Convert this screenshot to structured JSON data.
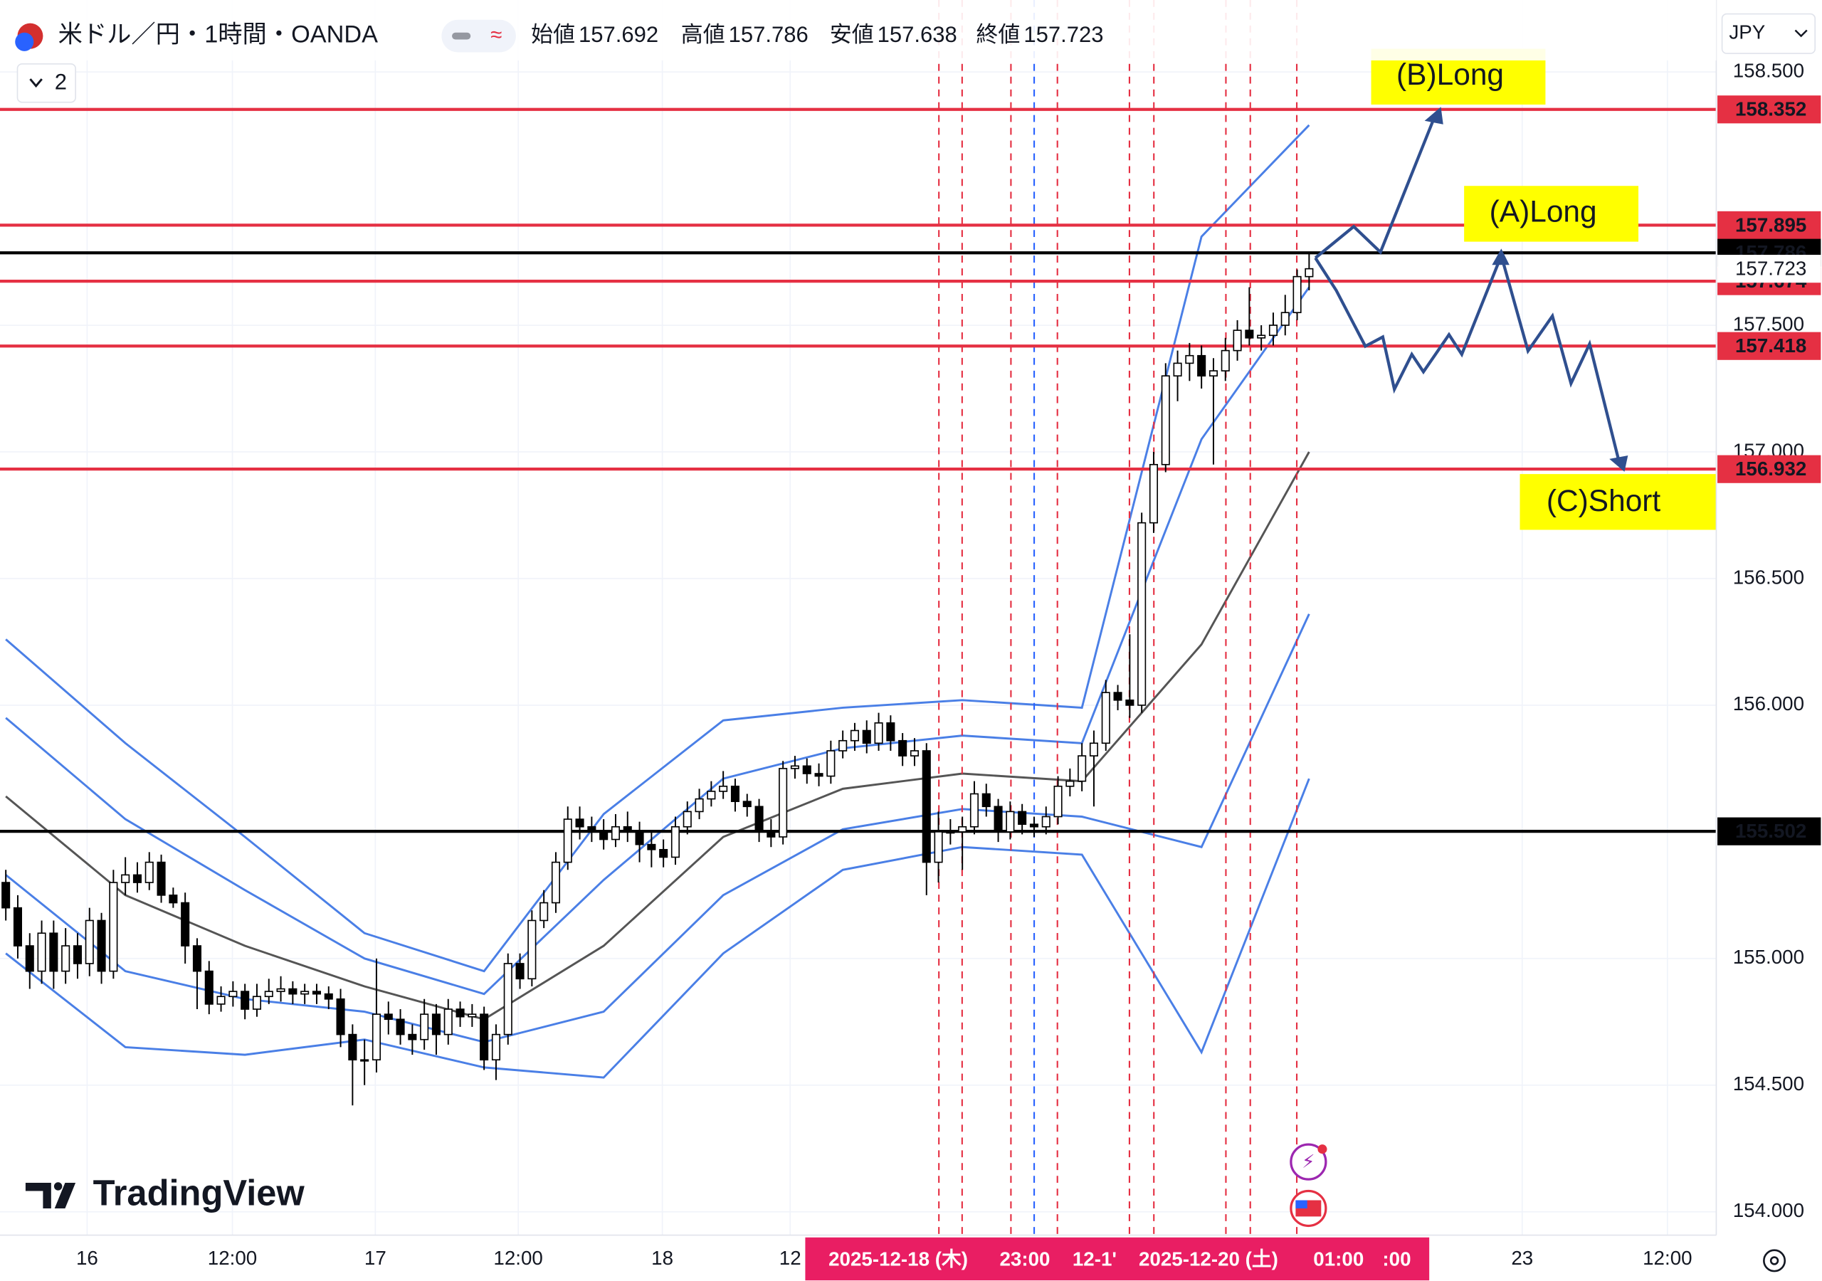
{
  "header": {
    "symbol": "米ドル／円・1時間・OANDA",
    "open_label": "始値",
    "open": 157.692,
    "high_label": "高値",
    "high": 157.786,
    "low_label": "安値",
    "low": 157.638,
    "close_label": "終値",
    "close": 157.723,
    "indicator_count": "2",
    "currency": "JPY"
  },
  "branding": "TradingView",
  "chart_data": {
    "type": "candlestick",
    "ylim": [
      153.908,
      158.784
    ],
    "yticks": [
      {
        "value": 154,
        "label": "154.000"
      },
      {
        "value": 154.5,
        "label": "154.500"
      },
      {
        "value": 155,
        "label": "155.000"
      },
      {
        "value": 156,
        "label": "156.000"
      },
      {
        "value": 156.5,
        "label": "156.500"
      },
      {
        "value": 157,
        "label": "157.000"
      },
      {
        "value": 157.5,
        "label": "157.500"
      },
      {
        "value": 158.5,
        "label": "158.500"
      }
    ],
    "xlabels": [
      "16",
      "12:00",
      "17",
      "12:00",
      "18",
      "12",
      "23",
      "12:00"
    ],
    "time_marker_labels": [
      "2025-12-18 (木)",
      "23:00",
      "12-1'",
      "2025-12-20 (土)",
      "01:00",
      ":00"
    ],
    "grid": true,
    "up_color": "#ffffff",
    "down_color": "#000000",
    "wick_color": "#000000",
    "open": [
      155.3,
      155.2,
      155.05,
      154.95,
      155.1,
      154.95,
      155.05,
      154.98,
      155.15,
      154.95,
      155.3,
      155.33,
      155.3,
      155.38,
      155.25,
      155.22,
      155.05,
      154.95,
      154.82,
      154.85,
      154.87,
      154.8,
      154.85,
      154.87,
      154.88,
      154.86,
      154.87,
      154.86,
      154.84,
      154.7,
      154.6,
      154.6,
      154.78,
      154.76,
      154.7,
      154.68,
      154.78,
      154.7,
      154.8,
      154.77,
      154.78,
      154.6,
      154.7,
      154.98,
      154.92,
      155.15,
      155.22,
      155.38,
      155.55,
      155.52,
      155.5,
      155.47,
      155.52,
      155.5,
      155.45,
      155.43,
      155.4,
      155.52,
      155.58,
      155.63,
      155.66,
      155.68,
      155.62,
      155.6,
      155.5,
      155.48,
      155.75,
      155.76,
      155.73,
      155.72,
      155.82,
      155.86,
      155.9,
      155.85,
      155.93,
      155.86,
      155.8,
      155.82,
      155.38,
      155.5,
      155.5,
      155.52,
      155.65,
      155.6,
      155.5,
      155.58,
      155.53,
      155.52,
      155.56,
      155.68,
      155.7,
      155.8,
      155.85,
      156.05,
      156.02,
      156.0,
      156.72,
      156.95,
      157.3,
      157.35,
      157.38,
      157.3,
      157.32,
      157.4,
      157.48,
      157.45,
      157.46,
      157.5,
      157.55,
      157.692
    ],
    "high": [
      155.35,
      155.25,
      155.1,
      155.15,
      155.15,
      155.12,
      155.1,
      155.2,
      155.18,
      155.35,
      155.4,
      155.38,
      155.42,
      155.41,
      155.28,
      155.26,
      155.08,
      154.99,
      154.89,
      154.91,
      154.9,
      154.9,
      154.92,
      154.93,
      154.91,
      154.9,
      154.9,
      154.89,
      154.88,
      154.74,
      154.68,
      155.0,
      154.83,
      154.8,
      154.74,
      154.84,
      154.82,
      154.84,
      154.83,
      154.82,
      154.81,
      154.74,
      155.02,
      155.02,
      155.19,
      155.27,
      155.42,
      155.6,
      155.6,
      155.56,
      155.55,
      155.57,
      155.58,
      155.54,
      155.5,
      155.47,
      155.56,
      155.62,
      155.67,
      155.7,
      155.74,
      155.71,
      155.65,
      155.63,
      155.55,
      155.78,
      155.8,
      155.79,
      155.77,
      155.86,
      155.9,
      155.93,
      155.94,
      155.97,
      155.96,
      155.89,
      155.87,
      155.85,
      155.58,
      155.55,
      155.56,
      155.7,
      155.69,
      155.63,
      155.62,
      155.61,
      155.56,
      155.6,
      155.72,
      155.75,
      155.85,
      155.9,
      156.1,
      156.08,
      156.28,
      156.76,
      157.0,
      157.35,
      157.4,
      157.43,
      157.42,
      157.37,
      157.45,
      157.52,
      157.65,
      157.5,
      157.55,
      157.62,
      157.72,
      157.786
    ],
    "low": [
      155.15,
      155.0,
      154.88,
      154.9,
      154.88,
      154.9,
      154.92,
      154.93,
      154.9,
      154.92,
      155.25,
      155.26,
      155.27,
      155.22,
      155.2,
      154.98,
      154.8,
      154.78,
      154.79,
      154.81,
      154.76,
      154.77,
      154.82,
      154.83,
      154.82,
      154.82,
      154.82,
      154.8,
      154.65,
      154.42,
      154.5,
      154.55,
      154.7,
      154.66,
      154.62,
      154.64,
      154.62,
      154.66,
      154.73,
      154.73,
      154.56,
      154.52,
      154.66,
      154.88,
      154.89,
      155.12,
      155.18,
      155.35,
      155.47,
      155.46,
      155.43,
      155.44,
      155.46,
      155.38,
      155.36,
      155.36,
      155.37,
      155.49,
      155.55,
      155.6,
      155.63,
      155.58,
      155.56,
      155.46,
      155.44,
      155.45,
      155.71,
      155.69,
      155.68,
      155.69,
      155.79,
      155.82,
      155.81,
      155.82,
      155.82,
      155.76,
      155.76,
      155.25,
      155.3,
      155.45,
      155.35,
      155.49,
      155.56,
      155.46,
      155.47,
      155.49,
      155.48,
      155.49,
      155.53,
      155.64,
      155.66,
      155.6,
      155.82,
      155.98,
      155.95,
      155.97,
      156.68,
      156.92,
      157.2,
      157.28,
      157.25,
      156.95,
      157.28,
      157.36,
      157.42,
      157.4,
      157.42,
      157.46,
      157.52,
      157.638
    ],
    "close": [
      155.2,
      155.05,
      154.95,
      155.1,
      154.95,
      155.05,
      154.98,
      155.15,
      154.95,
      155.3,
      155.33,
      155.3,
      155.38,
      155.25,
      155.22,
      155.05,
      154.95,
      154.82,
      154.85,
      154.87,
      154.8,
      154.85,
      154.87,
      154.88,
      154.86,
      154.87,
      154.86,
      154.84,
      154.7,
      154.6,
      154.6,
      154.78,
      154.76,
      154.7,
      154.68,
      154.78,
      154.7,
      154.8,
      154.77,
      154.78,
      154.6,
      154.7,
      154.98,
      154.92,
      155.15,
      155.22,
      155.38,
      155.55,
      155.52,
      155.5,
      155.47,
      155.52,
      155.5,
      155.45,
      155.43,
      155.4,
      155.52,
      155.58,
      155.63,
      155.66,
      155.68,
      155.62,
      155.6,
      155.5,
      155.48,
      155.75,
      155.76,
      155.73,
      155.72,
      155.82,
      155.86,
      155.9,
      155.85,
      155.93,
      155.86,
      155.8,
      155.82,
      155.38,
      155.5,
      155.5,
      155.52,
      155.65,
      155.6,
      155.5,
      155.58,
      155.53,
      155.52,
      155.56,
      155.68,
      155.7,
      155.8,
      155.85,
      156.05,
      156.02,
      156.0,
      156.72,
      156.95,
      157.3,
      157.35,
      157.38,
      157.3,
      157.32,
      157.4,
      157.48,
      157.45,
      157.46,
      157.5,
      157.55,
      157.692,
      157.723
    ],
    "band_x": [
      0,
      10,
      20,
      30,
      40,
      50,
      60,
      70,
      80,
      90,
      100,
      109
    ],
    "bands": [
      {
        "color": "#4a7fe6",
        "values": [
          156.26,
          155.85,
          155.48,
          155.1,
          154.95,
          155.57,
          155.94,
          155.99,
          156.02,
          155.99,
          157.85,
          158.29
        ]
      },
      {
        "color": "#4a7fe6",
        "values": [
          155.95,
          155.55,
          155.27,
          155.0,
          154.86,
          155.31,
          155.71,
          155.83,
          155.88,
          155.85,
          157.05,
          157.65
        ]
      },
      {
        "color": "#555555",
        "values": [
          155.64,
          155.25,
          155.05,
          154.89,
          154.76,
          155.05,
          155.48,
          155.67,
          155.73,
          155.7,
          156.24,
          157.0
        ]
      },
      {
        "color": "#4a7fe6",
        "values": [
          155.33,
          154.95,
          154.84,
          154.79,
          154.67,
          154.79,
          155.25,
          155.51,
          155.59,
          155.56,
          155.44,
          156.36
        ]
      },
      {
        "color": "#4a7fe6",
        "values": [
          155.02,
          154.65,
          154.62,
          154.68,
          154.57,
          154.53,
          155.02,
          155.35,
          155.44,
          155.41,
          154.63,
          155.71
        ]
      }
    ],
    "levels": [
      {
        "value": 158.352,
        "color": "#e53043"
      },
      {
        "value": 157.895,
        "color": "#e53043"
      },
      {
        "value": 157.786,
        "color": "#000000"
      },
      {
        "value": 157.674,
        "color": "#e53043"
      },
      {
        "value": 157.418,
        "color": "#e53043"
      },
      {
        "value": 156.932,
        "color": "#e53043"
      },
      {
        "value": 155.502,
        "color": "#000000"
      }
    ],
    "annotations": [
      "(B)Long",
      "(A)Long",
      "(C)Short"
    ]
  }
}
